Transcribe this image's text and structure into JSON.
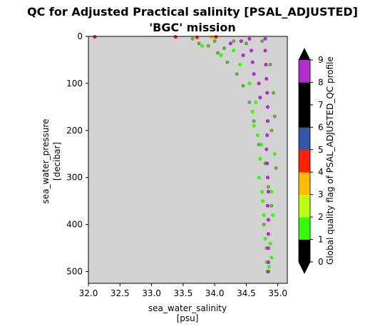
{
  "chart_data": {
    "type": "scatter",
    "title": "QC for Adjusted Practical salinity [PSAL_ADJUSTED]",
    "subtitle": "'BGC' mission",
    "xlabel": "sea_water_salinity",
    "xunit": "[psu]",
    "ylabel": "sea_water_pressure",
    "yunit": "[decibar]",
    "xlim": [
      32.0,
      35.15
    ],
    "ylim": [
      525,
      0
    ],
    "y_inverted": true,
    "x_ticks": [
      "32.0",
      "32.5",
      "33.0",
      "33.5",
      "34.0",
      "34.5",
      "35.0"
    ],
    "y_ticks": [
      "0",
      "100",
      "200",
      "300",
      "400",
      "500"
    ],
    "background_color": "#d3d3d3",
    "grid": false,
    "series": [
      {
        "flag": 1,
        "color": "#33ff00",
        "points": [
          [
            34.75,
            330
          ],
          [
            34.78,
            380
          ],
          [
            34.8,
            430
          ],
          [
            34.82,
            480
          ],
          [
            34.83,
            500
          ],
          [
            34.6,
            160
          ],
          [
            34.68,
            210
          ],
          [
            34.72,
            260
          ],
          [
            34.7,
            300
          ],
          [
            34.76,
            350
          ],
          [
            34.9,
            330
          ],
          [
            34.92,
            380
          ],
          [
            34.88,
            440
          ],
          [
            34.86,
            490
          ],
          [
            34.95,
            250
          ],
          [
            34.4,
            60
          ],
          [
            34.55,
            100
          ],
          [
            34.3,
            30
          ],
          [
            33.8,
            20
          ],
          [
            34.1,
            40
          ],
          [
            34.65,
            140
          ],
          [
            34.85,
            420
          ],
          [
            34.74,
            230
          ],
          [
            34.62,
            190
          ],
          [
            34.9,
            470
          ]
        ]
      },
      {
        "flag": 2,
        "color": "#66aa44",
        "points": [
          [
            33.65,
            5
          ],
          [
            33.75,
            15
          ],
          [
            33.9,
            20
          ],
          [
            34.05,
            35
          ],
          [
            34.2,
            55
          ],
          [
            34.35,
            80
          ],
          [
            34.45,
            105
          ],
          [
            34.55,
            140
          ],
          [
            34.62,
            180
          ],
          [
            34.7,
            230
          ],
          [
            34.8,
            270
          ],
          [
            34.9,
            200
          ],
          [
            34.97,
            280
          ],
          [
            34.93,
            120
          ],
          [
            34.88,
            60
          ],
          [
            34.75,
            10
          ],
          [
            34.5,
            15
          ],
          [
            34.3,
            10
          ],
          [
            34.15,
            25
          ],
          [
            34.0,
            10
          ],
          [
            34.85,
            320
          ],
          [
            34.9,
            360
          ],
          [
            34.78,
            400
          ],
          [
            34.82,
            450
          ],
          [
            34.95,
            170
          ]
        ]
      },
      {
        "flag": 3,
        "color": "#ffb300",
        "points": [
          [
            33.95,
            2
          ]
        ]
      },
      {
        "flag": 4,
        "color": "#ff2200",
        "points": [
          [
            32.1,
            1
          ],
          [
            33.38,
            1
          ],
          [
            33.72,
            2
          ],
          [
            34.02,
            1
          ]
        ]
      },
      {
        "flag": 8,
        "color": "#b22ecc",
        "points": [
          [
            34.8,
            5
          ],
          [
            34.8,
            30
          ],
          [
            34.81,
            60
          ],
          [
            34.82,
            90
          ],
          [
            34.83,
            120
          ],
          [
            34.84,
            150
          ],
          [
            34.84,
            180
          ],
          [
            34.83,
            210
          ],
          [
            34.82,
            240
          ],
          [
            34.83,
            270
          ],
          [
            34.84,
            300
          ],
          [
            34.85,
            330
          ],
          [
            34.84,
            360
          ],
          [
            34.85,
            390
          ],
          [
            34.85,
            420
          ],
          [
            34.85,
            450
          ],
          [
            34.85,
            480
          ],
          [
            34.85,
            500
          ],
          [
            34.55,
            5
          ],
          [
            34.58,
            30
          ],
          [
            34.6,
            55
          ],
          [
            34.62,
            80
          ],
          [
            34.42,
            10
          ],
          [
            34.45,
            40
          ],
          [
            34.25,
            15
          ],
          [
            34.7,
            100
          ],
          [
            34.72,
            130
          ]
        ]
      }
    ],
    "colorbar": {
      "label": "Global quality flag of PSAL_ADJUSTED_QC profile",
      "ticks": [
        "0",
        "1",
        "2",
        "3",
        "4",
        "5",
        "6",
        "7",
        "8",
        "9"
      ],
      "segments": [
        {
          "flag": 0,
          "color": "#000000"
        },
        {
          "flag": 1,
          "color": "#33ff00"
        },
        {
          "flag": 2,
          "color": "#bbff11"
        },
        {
          "flag": 3,
          "color": "#ffbb00"
        },
        {
          "flag": 4,
          "color": "#ff2200"
        },
        {
          "flag": 5,
          "color": "#3355aa"
        },
        {
          "flag": 6,
          "color": "#000000"
        },
        {
          "flag": 7,
          "color": "#000000"
        },
        {
          "flag": 8,
          "color": "#b22ecc"
        }
      ],
      "extend_color": "#000000"
    }
  }
}
